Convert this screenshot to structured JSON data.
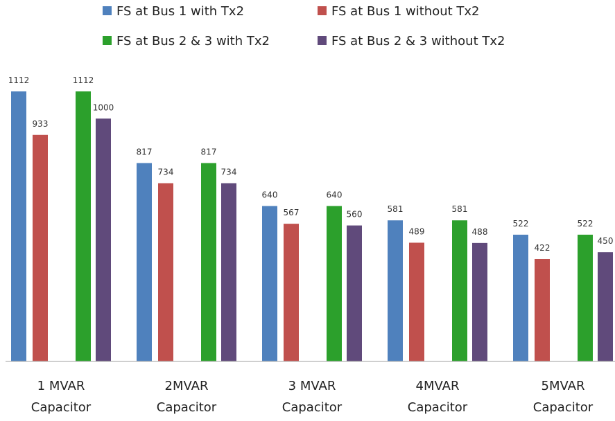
{
  "chart_data": {
    "type": "bar",
    "title": "",
    "xlabel": "",
    "ylabel": "",
    "ylim": [
      0,
      1112
    ],
    "grid": false,
    "legend_placement": "top",
    "categories": [
      [
        "1 MVAR",
        "Capacitor"
      ],
      [
        "2MVAR",
        "Capacitor"
      ],
      [
        "3 MVAR",
        "Capacitor"
      ],
      [
        "4MVAR",
        "Capacitor"
      ],
      [
        "5MVAR",
        "Capacitor"
      ]
    ],
    "series": [
      {
        "name": "FS at Bus 1 with Tx2",
        "color": "#4f81bd",
        "values": [
          1112,
          817,
          640,
          581,
          522
        ]
      },
      {
        "name": "FS at Bus 1 without Tx2",
        "color": "#c0504d",
        "values": [
          933,
          734,
          567,
          489,
          422
        ]
      },
      {
        "name": "FS at Bus 2 & 3 with Tx2",
        "color": "#2ca02c",
        "values": [
          1112,
          817,
          640,
          581,
          522
        ]
      },
      {
        "name": "FS at Bus 2 & 3 without Tx2",
        "color": "#604a7b",
        "values": [
          1000,
          734,
          560,
          488,
          450
        ]
      }
    ]
  }
}
